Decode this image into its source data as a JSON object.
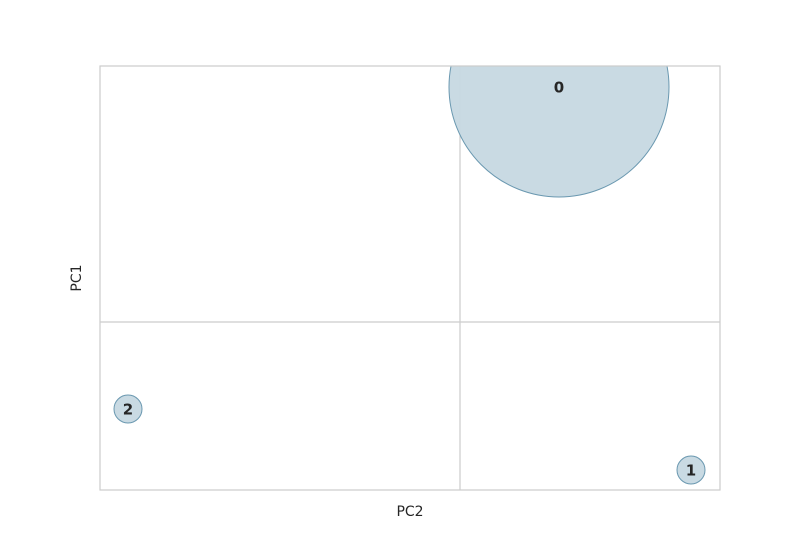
{
  "chart_data": {
    "type": "bubble",
    "xlabel": "PC2",
    "ylabel": "PC1",
    "categories": [
      "0",
      "1",
      "2"
    ],
    "x": [
      0.99,
      2.31,
      -3.32
    ],
    "values": [
      2.35,
      -1.48,
      -0.87
    ],
    "sizes": [
      1.1,
      0.14,
      0.14
    ],
    "xlim": [
      -3.6,
      2.6
    ],
    "ylim": [
      -1.68,
      2.56
    ],
    "xgrid": [
      0
    ],
    "ygrid": [
      0
    ],
    "color": "#c6d8e2",
    "edge_color": "#6a98b0"
  }
}
